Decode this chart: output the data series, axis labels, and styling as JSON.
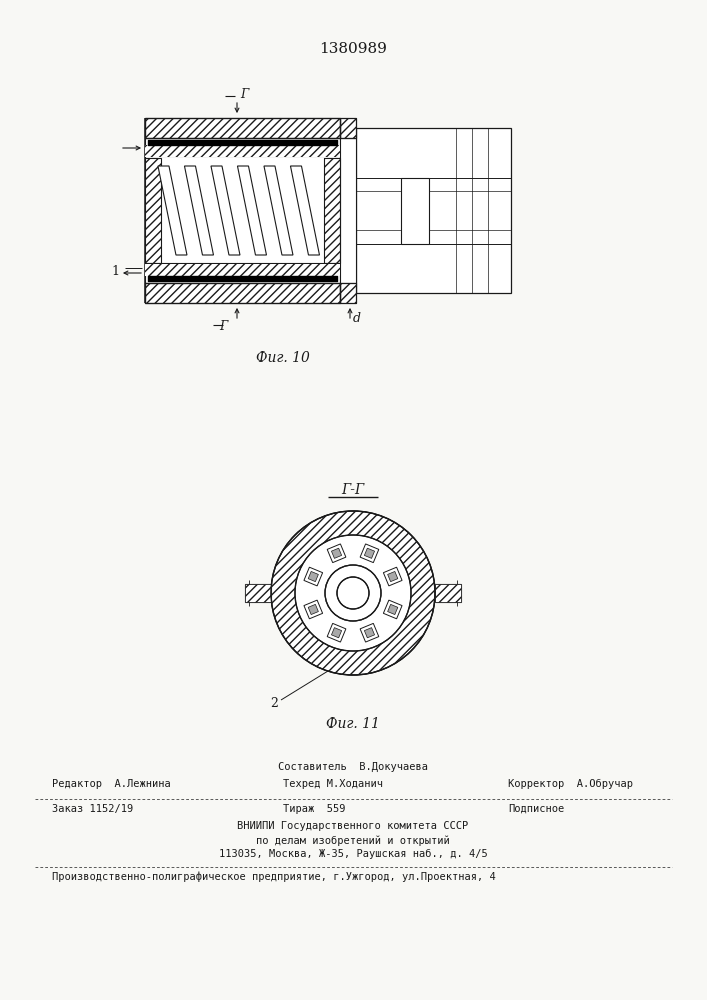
{
  "patent_number": "1380989",
  "fig10_label": "Фиг. 10",
  "fig11_label": "Фиг. 11",
  "section_label": "Г-Г",
  "label_1": "1",
  "label_2": "2",
  "label_d": "d",
  "label_g": "Г",
  "line_color": "#1a1a1a",
  "bg_color": "#f8f8f5",
  "footer_line1_center": "Составитель  В.Докучаева",
  "footer_line1_left": "Редактор  А.Лежнина",
  "footer_line2_center": "Техред М.Ходанич",
  "footer_line2_right": "Корректор  А.Обручар",
  "footer_line3_left": "Заказ 1152/19",
  "footer_line3_center": "Тираж  559",
  "footer_line3_right": "Подписное",
  "footer_line4": "ВНИИПИ Государственного комитета СССР",
  "footer_line5": "по делам изобретений и открытий",
  "footer_line6": "113035, Москва, Ж-35, Раушская наб., д. 4/5",
  "footer_line7": "Производственно-полиграфическое предприятие, г.Ужгород, ул.Проектная, 4"
}
